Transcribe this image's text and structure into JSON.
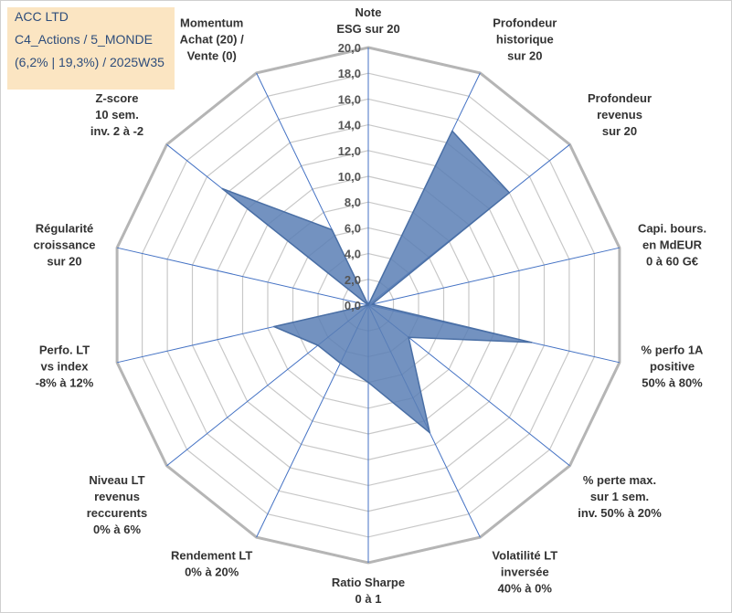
{
  "header": {
    "lines": [
      "ACC LTD",
      "C4_Actions / 5_MONDE",
      "(6,2% | 19,3%) / 2025W35"
    ],
    "background_color": "#fbe5c2",
    "text_color": "#2e4d7b"
  },
  "chart_data": {
    "type": "radar",
    "title": "",
    "range": [
      0,
      20
    ],
    "ticks": [
      "0,0",
      "2,0",
      "4,0",
      "6,0",
      "8,0",
      "10,0",
      "12,0",
      "14,0",
      "16,0",
      "18,0",
      "20,0"
    ],
    "grid": true,
    "legend": "none",
    "colors": {
      "fill": "#5b7fb5",
      "stroke": "#4a6fa5",
      "grid": "#c8c8c8",
      "spoke": "#4472c4"
    },
    "axes": [
      [
        "Note",
        "ESG sur 20"
      ],
      [
        "Profondeur",
        "historique",
        "sur 20"
      ],
      [
        "Profondeur",
        "revenus",
        "sur 20"
      ],
      [
        "Capi. bours.",
        "en MdEUR",
        "0 à 60 G€"
      ],
      [
        "% perfo 1A",
        "positive",
        "50% à 80%"
      ],
      [
        "% perte max.",
        "sur 1 sem.",
        "inv. 50% à 20%"
      ],
      [
        "Volatilité LT",
        "inversée",
        "40% à 0%"
      ],
      [
        "Ratio Sharpe",
        "0 à 1"
      ],
      [
        "Rendement LT",
        "0% à 20%"
      ],
      [
        "Niveau LT",
        "revenus",
        "reccurents",
        "0% à 6%"
      ],
      [
        "Perfo. LT",
        "vs index",
        "-8% à 12%"
      ],
      [
        "Régularité",
        "croissance",
        "sur 20"
      ],
      [
        "Z-score",
        "10 sem.",
        "inv. 2 à -2"
      ],
      [
        "Momentum",
        "Achat (20) /",
        "Vente (0)"
      ]
    ],
    "series": [
      {
        "values": [
          0,
          15,
          14,
          0.3,
          13,
          4,
          11,
          6,
          5,
          5,
          7.5,
          0,
          14.5,
          6.5
        ]
      }
    ]
  }
}
